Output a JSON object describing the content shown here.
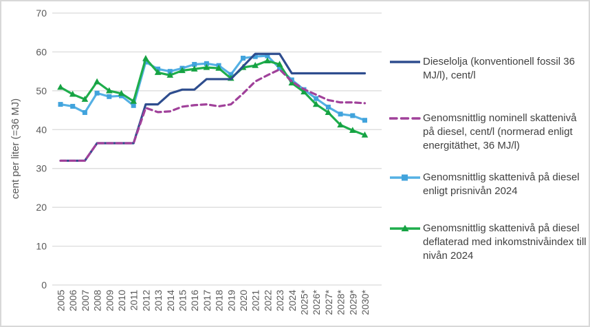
{
  "chart_data": {
    "type": "line",
    "title": "",
    "xlabel": "",
    "ylabel": "cent per liter (=36 MJ)",
    "ylim": [
      0,
      70
    ],
    "ytick_interval": 10,
    "grid": true,
    "legend_position": "right",
    "axis_text_color": "#595959",
    "gridline_color": "#D9D9D9",
    "categories": [
      "2005",
      "2006",
      "2007",
      "2008",
      "2009",
      "2010",
      "2011",
      "2012",
      "2013",
      "2014",
      "2015",
      "2016",
      "2017",
      "2018",
      "2019",
      "2020",
      "2021",
      "2022",
      "2023",
      "2024",
      "2025*",
      "2026*",
      "2027*",
      "2028*",
      "2029*",
      "2030*"
    ],
    "series": [
      {
        "name": "Dieselolja (konventionell fossil 36 MJ/l), cent/l",
        "color": "#2E4D8E",
        "style": "solid",
        "marker": "none",
        "values": [
          32,
          32,
          32,
          36.5,
          36.5,
          36.5,
          36.5,
          46.5,
          46.5,
          49.3,
          50.3,
          50.3,
          53,
          53,
          53,
          56.3,
          59.5,
          59.5,
          59.5,
          54.5,
          54.5,
          54.5,
          54.5,
          54.5,
          54.5,
          54.5
        ]
      },
      {
        "name": "Genomsnittlig nominell skattenivå på diesel, cent/l (normerad enligt energitäthet, 36 MJ/l)",
        "color": "#A0419A",
        "style": "dashed",
        "marker": "none",
        "values": [
          32,
          32,
          32,
          36.5,
          36.5,
          36.5,
          36.5,
          45.6,
          44.5,
          44.7,
          45.9,
          46.3,
          46.5,
          46,
          46.5,
          49.3,
          52.4,
          54,
          55.5,
          52.4,
          50.4,
          49,
          47.6,
          47,
          47,
          46.8
        ]
      },
      {
        "name": "Genomsnittlig skattenivå på diesel enligt prisnivån 2024",
        "color": "#54B0E4",
        "marker_color": "#41A3DC",
        "style": "solid",
        "marker": "square",
        "values": [
          46.5,
          46,
          44.4,
          49.4,
          48.5,
          48.7,
          46.2,
          57.4,
          55.6,
          55,
          55.8,
          56.8,
          57,
          56.5,
          54.2,
          58.4,
          58.8,
          59,
          55.8,
          52.8,
          50.3,
          48,
          45.8,
          44,
          43.6,
          42.4
        ]
      },
      {
        "name": "Genomsnittlig skattenivå på diesel deflaterad med inkomstnivåindex till nivån 2024",
        "color": "#1EAD4C",
        "marker_color": "#16A243",
        "style": "solid",
        "marker": "triangle",
        "values": [
          50.9,
          49.1,
          47.8,
          52.3,
          50,
          49.3,
          47.3,
          58.3,
          54.7,
          54,
          55.2,
          55.6,
          56,
          55.8,
          53.2,
          56,
          56.5,
          57.7,
          56.8,
          52,
          49.7,
          46.5,
          44.4,
          41.2,
          39.8,
          38.6
        ]
      }
    ]
  }
}
